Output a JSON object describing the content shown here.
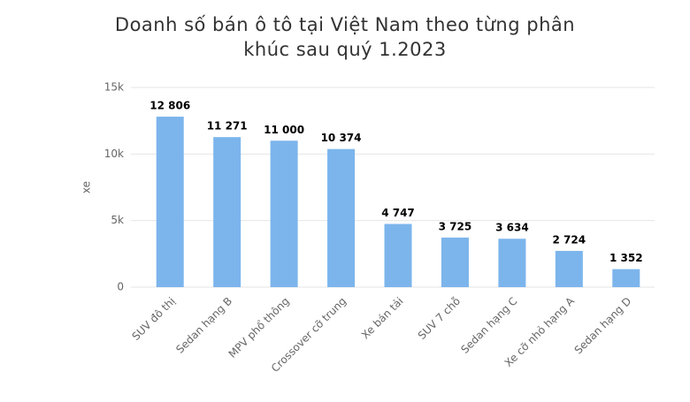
{
  "chart_data": {
    "type": "bar",
    "title": "Doanh số bán ô tô tại Việt Nam theo từng phân khúc sau quý 1.2023",
    "y_label": "xe",
    "categories": [
      "SUV đô thị",
      "Sedan hạng B",
      "MPV phổ thông",
      "Crossover cỡ trung",
      "Xe bán tải",
      "SUV 7 chỗ",
      "Sedan hạng C",
      "Xe cỡ nhỏ hạng A",
      "Sedan hạng D"
    ],
    "values": [
      12806,
      11271,
      11000,
      10374,
      4747,
      3725,
      3634,
      2724,
      1352
    ],
    "value_labels": [
      "12 806",
      "11 271",
      "11 000",
      "10 374",
      "4 747",
      "3 725",
      "3 634",
      "2 724",
      "1 352"
    ],
    "color": "#7cb5ec",
    "ylim": [
      0,
      15000
    ],
    "yticks": [
      0,
      {
        "value": 5000,
        "label": "5k"
      },
      {
        "value": 10000,
        "label": "10k"
      },
      {
        "value": 15000,
        "label": "15k"
      }
    ],
    "grid": true
  }
}
